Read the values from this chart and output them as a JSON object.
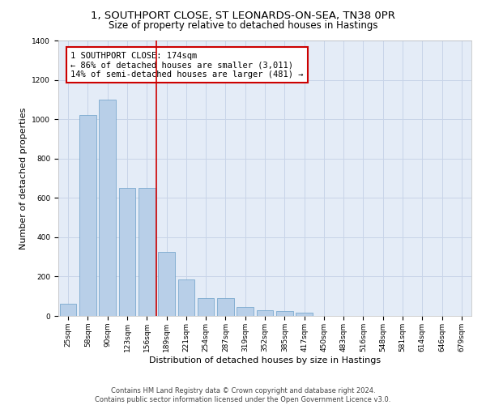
{
  "title_line1": "1, SOUTHPORT CLOSE, ST LEONARDS-ON-SEA, TN38 0PR",
  "title_line2": "Size of property relative to detached houses in Hastings",
  "xlabel": "Distribution of detached houses by size in Hastings",
  "ylabel": "Number of detached properties",
  "categories": [
    "25sqm",
    "58sqm",
    "90sqm",
    "123sqm",
    "156sqm",
    "189sqm",
    "221sqm",
    "254sqm",
    "287sqm",
    "319sqm",
    "352sqm",
    "385sqm",
    "417sqm",
    "450sqm",
    "483sqm",
    "516sqm",
    "548sqm",
    "581sqm",
    "614sqm",
    "646sqm",
    "679sqm"
  ],
  "values": [
    62,
    1020,
    1100,
    650,
    650,
    325,
    185,
    90,
    90,
    45,
    28,
    25,
    18,
    0,
    0,
    0,
    0,
    0,
    0,
    0,
    0
  ],
  "bar_color": "#b8cfe8",
  "bar_edge_color": "#6a9fc8",
  "vline_color": "#cc0000",
  "annotation_text": "1 SOUTHPORT CLOSE: 174sqm\n← 86% of detached houses are smaller (3,011)\n14% of semi-detached houses are larger (481) →",
  "annotation_box_color": "#cc0000",
  "ylim": [
    0,
    1400
  ],
  "yticks": [
    0,
    200,
    400,
    600,
    800,
    1000,
    1200,
    1400
  ],
  "grid_color": "#c8d4e8",
  "bg_color": "#e4ecf7",
  "footer_text": "Contains HM Land Registry data © Crown copyright and database right 2024.\nContains public sector information licensed under the Open Government Licence v3.0.",
  "title_fontsize": 9.5,
  "subtitle_fontsize": 8.5,
  "axis_label_fontsize": 8,
  "tick_fontsize": 6.5,
  "annotation_fontsize": 7.5,
  "footer_fontsize": 6
}
